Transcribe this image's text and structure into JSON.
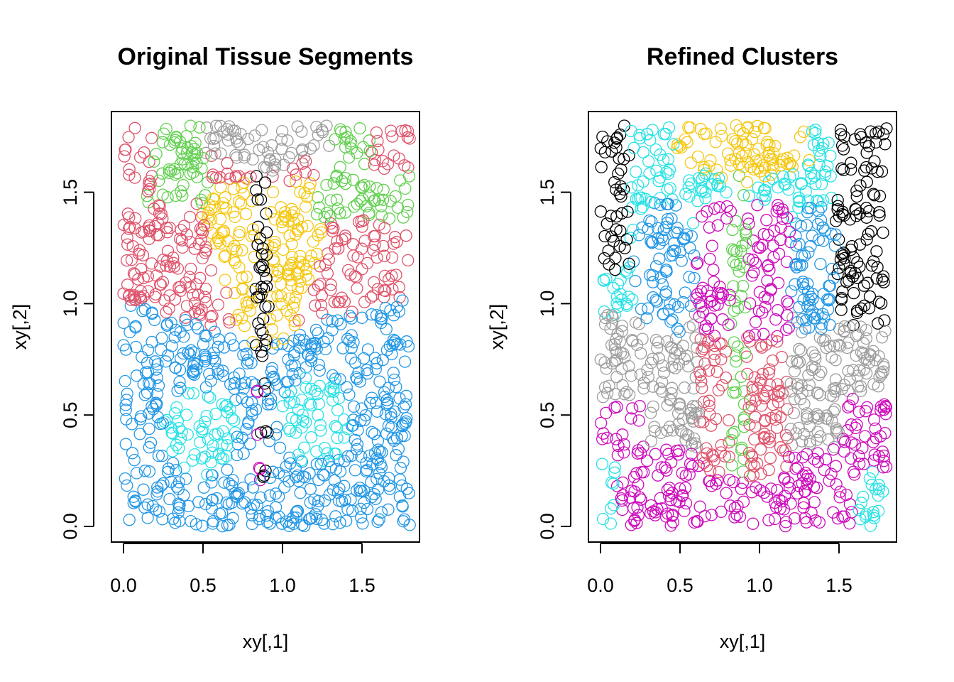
{
  "chart_data": [
    {
      "type": "scatter",
      "title": "Original Tissue Segments",
      "xlabel": "xy[,1]",
      "ylabel": "xy[,2]",
      "xlim": [
        -0.08,
        1.86
      ],
      "ylim": [
        -0.07,
        1.82
      ],
      "xticks": [
        "0.0",
        "0.5",
        "1.0",
        "1.5"
      ],
      "yticks": [
        "0.0",
        "0.5",
        "1.0",
        "1.5"
      ],
      "marker": "open-circle",
      "grid": false,
      "series": [
        {
          "color": "#2297E6",
          "region": "lower-wings"
        },
        {
          "color": "#DF536B",
          "region": "upper-wings"
        },
        {
          "color": "#61D04F",
          "region": "top-corners"
        },
        {
          "color": "#9E9E9E",
          "region": "top-center"
        },
        {
          "color": "#F5C710",
          "region": "upper-inner"
        },
        {
          "color": "#28E2E5",
          "region": "lower-spots"
        },
        {
          "color": "#CD0BBC",
          "region": "lower-body"
        },
        {
          "color": "#000000",
          "region": "body"
        }
      ]
    },
    {
      "type": "scatter",
      "title": "Refined Clusters",
      "xlabel": "xy[,1]",
      "ylabel": "xy[,2]",
      "xlim": [
        -0.08,
        1.86
      ],
      "ylim": [
        -0.07,
        1.82
      ],
      "xticks": [
        "0.0",
        "0.5",
        "1.0",
        "1.5"
      ],
      "yticks": [
        "0.0",
        "0.5",
        "1.0",
        "1.5"
      ],
      "marker": "open-circle",
      "grid": false,
      "series": [
        {
          "color": "#28E2E5",
          "region": "background"
        },
        {
          "color": "#000000",
          "region": "outer-upper-bands"
        },
        {
          "color": "#F5C710",
          "region": "top-center"
        },
        {
          "color": "#2297E6",
          "region": "mid-wings"
        },
        {
          "color": "#9E9E9E",
          "region": "middle"
        },
        {
          "color": "#CD0BBC",
          "region": "lower-and-upper-inner"
        },
        {
          "color": "#DF536B",
          "region": "lower-body"
        },
        {
          "color": "#61D04F",
          "region": "center-line"
        }
      ]
    }
  ]
}
